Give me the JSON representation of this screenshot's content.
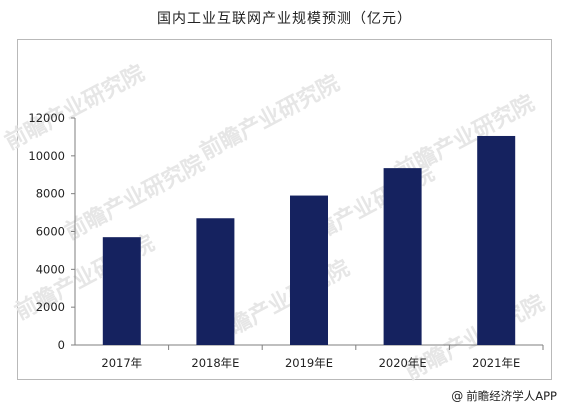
{
  "chart_data": {
    "type": "bar",
    "title": "国内工业互联网产业规模预测（亿元）",
    "categories": [
      "2017年",
      "2018年E",
      "2019年E",
      "2020年E",
      "2021年E"
    ],
    "values": [
      5700,
      6700,
      7900,
      9350,
      11050
    ],
    "ylim": [
      0,
      12000
    ],
    "yticks": [
      0,
      2000,
      4000,
      6000,
      8000,
      10000,
      12000
    ],
    "xlabel": "",
    "ylabel": "",
    "grid": false,
    "bar_color": "#15225f"
  },
  "source": {
    "at_symbol": "@",
    "text": "前瞻经济学人APP"
  },
  "watermark": {
    "text": "前瞻产业研究院",
    "color": "#e6e6e6"
  }
}
